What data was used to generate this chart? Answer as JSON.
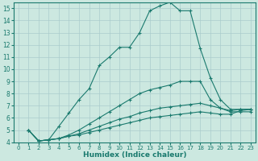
{
  "xlabel": "Humidex (Indice chaleur)",
  "xlim": [
    -0.5,
    23.5
  ],
  "ylim": [
    4,
    15.5
  ],
  "xticks": [
    0,
    1,
    2,
    3,
    4,
    5,
    6,
    7,
    8,
    9,
    10,
    11,
    12,
    13,
    14,
    15,
    16,
    17,
    18,
    19,
    20,
    21,
    22,
    23
  ],
  "yticks": [
    4,
    5,
    6,
    7,
    8,
    9,
    10,
    11,
    12,
    13,
    14,
    15
  ],
  "background_color": "#cce8e0",
  "line_color": "#1a7a6e",
  "grid_color": "#aacccc",
  "lines": [
    {
      "x": [
        1,
        2,
        3,
        4,
        5,
        6,
        7,
        8,
        9,
        10,
        11,
        12,
        13,
        14,
        15,
        16,
        17,
        18,
        19,
        20,
        21,
        22,
        23
      ],
      "y": [
        5.0,
        4.1,
        4.2,
        5.3,
        6.4,
        7.5,
        8.4,
        10.3,
        11.0,
        11.8,
        11.8,
        13.0,
        14.8,
        15.2,
        15.5,
        14.8,
        14.8,
        11.7,
        9.3,
        7.5,
        6.7,
        6.7,
        6.7
      ]
    },
    {
      "x": [
        1,
        2,
        3,
        4,
        5,
        6,
        7,
        8,
        9,
        10,
        11,
        12,
        13,
        14,
        15,
        16,
        17,
        18,
        19,
        20,
        21,
        22,
        23
      ],
      "y": [
        5.0,
        4.1,
        4.2,
        4.3,
        4.6,
        5.0,
        5.5,
        6.0,
        6.5,
        7.0,
        7.5,
        8.0,
        8.3,
        8.5,
        8.7,
        9.0,
        9.0,
        9.0,
        7.5,
        6.8,
        6.5,
        6.5,
        6.5
      ]
    },
    {
      "x": [
        1,
        2,
        3,
        4,
        5,
        6,
        7,
        8,
        9,
        10,
        11,
        12,
        13,
        14,
        15,
        16,
        17,
        18,
        19,
        20,
        21,
        22,
        23
      ],
      "y": [
        5.0,
        4.1,
        4.2,
        4.3,
        4.5,
        4.7,
        5.0,
        5.3,
        5.6,
        5.9,
        6.1,
        6.4,
        6.6,
        6.8,
        6.9,
        7.0,
        7.1,
        7.2,
        7.0,
        6.8,
        6.6,
        6.7,
        6.7
      ]
    },
    {
      "x": [
        1,
        2,
        3,
        4,
        5,
        6,
        7,
        8,
        9,
        10,
        11,
        12,
        13,
        14,
        15,
        16,
        17,
        18,
        19,
        20,
        21,
        22,
        23
      ],
      "y": [
        5.0,
        4.1,
        4.2,
        4.3,
        4.5,
        4.6,
        4.8,
        5.0,
        5.2,
        5.4,
        5.6,
        5.8,
        6.0,
        6.1,
        6.2,
        6.3,
        6.4,
        6.5,
        6.4,
        6.3,
        6.3,
        6.6,
        6.7
      ]
    }
  ]
}
